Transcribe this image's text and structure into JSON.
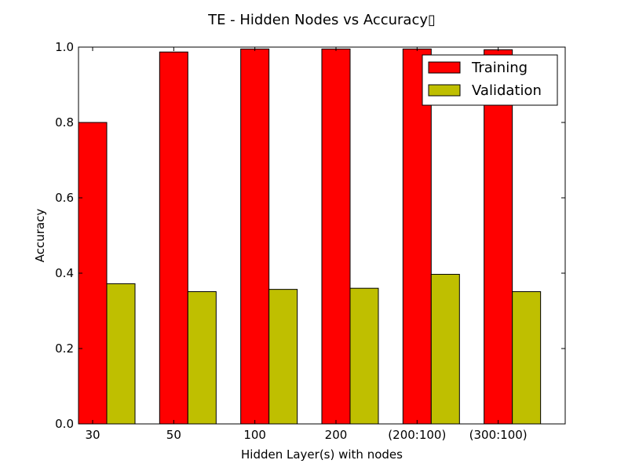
{
  "chart_data": {
    "type": "bar",
    "title": "TE - Hidden Nodes vs Accuracy▯",
    "xlabel": "Hidden Layer(s) with nodes",
    "ylabel": "Accuracy",
    "categories": [
      "30",
      "50",
      "100",
      "200",
      "(200:100)",
      "(300:100)"
    ],
    "series": [
      {
        "name": "Training",
        "color": "#ff0000",
        "values": [
          0.8,
          0.987,
          0.995,
          0.995,
          0.995,
          0.993
        ]
      },
      {
        "name": "Validation",
        "color": "#bfbf00",
        "values": [
          0.372,
          0.351,
          0.357,
          0.36,
          0.397,
          0.351
        ]
      }
    ],
    "ylim": [
      0.0,
      1.0
    ],
    "yticks": [
      "0.0",
      "0.2",
      "0.4",
      "0.6",
      "0.8",
      "1.0"
    ],
    "grid": false,
    "legend_position": "top-right"
  }
}
